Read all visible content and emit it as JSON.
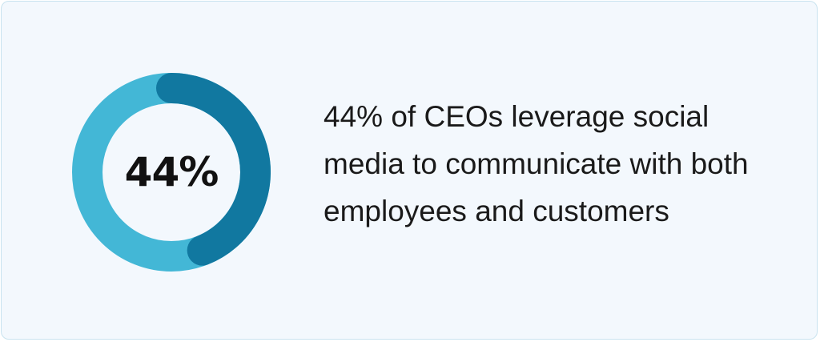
{
  "chart_data": {
    "type": "pie",
    "value_percent": 44,
    "center_label": "44%",
    "colors": {
      "highlight": "#1178a0",
      "remainder": "#43b7d6"
    }
  },
  "caption": "44% of CEOs leverage social\nmedia to communicate with both\nemployees and customers",
  "colors": {
    "background": "#f3f8fd",
    "border": "#c9e3ef",
    "text": "#1a1a1a"
  }
}
